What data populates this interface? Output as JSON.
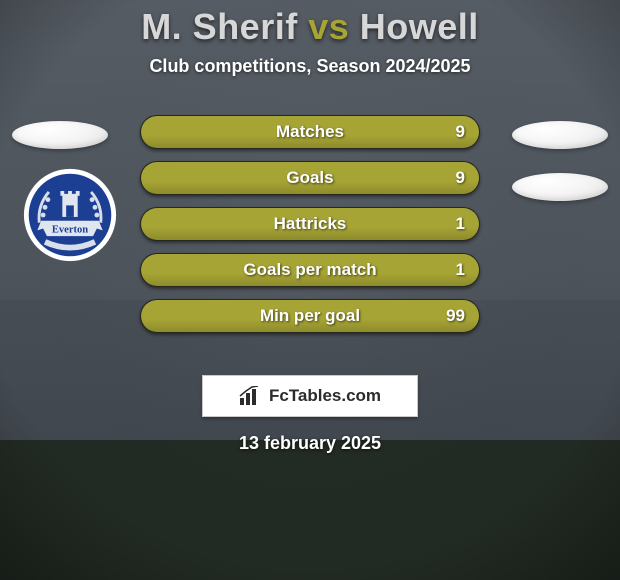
{
  "background": {
    "top_color": "#545a62",
    "bottom_color": "#3b4148",
    "grass_color": "#2e3a2f"
  },
  "title": {
    "prefix": "M. Sherif ",
    "prefix_color": "#d7d7d7",
    "mid": "vs",
    "mid_color": "#a6a434",
    "suffix": " Howell",
    "suffix_color": "#d7d7d7",
    "fontsize": 36
  },
  "subtitle": {
    "text": "Club competitions, Season 2024/2025",
    "color": "#ffffff",
    "fontsize": 18
  },
  "bars": {
    "fill_color": "#a6a434",
    "track_color": "#393f34",
    "text_color": "#ffffff",
    "rows": [
      {
        "label": "Matches",
        "value": "9",
        "fill_pct": 100
      },
      {
        "label": "Goals",
        "value": "9",
        "fill_pct": 100
      },
      {
        "label": "Hattricks",
        "value": "1",
        "fill_pct": 100
      },
      {
        "label": "Goals per match",
        "value": "1",
        "fill_pct": 100
      },
      {
        "label": "Min per goal",
        "value": "99",
        "fill_pct": 100
      }
    ]
  },
  "ovals": {
    "fill": "#f0f0f0"
  },
  "crest": {
    "outer_ring": "#ffffff",
    "inner_bg": "#1c3f94",
    "tower_color": "#dfe6f0",
    "banner_color": "#dfe6f0",
    "banner_text": "Everton",
    "banner_text_color": "#1c3f94",
    "motto_color": "#d9dfea"
  },
  "brand": {
    "text": "FcTables.com",
    "icon_color": "#2c2c2c"
  },
  "date": {
    "text": "13 february 2025"
  }
}
